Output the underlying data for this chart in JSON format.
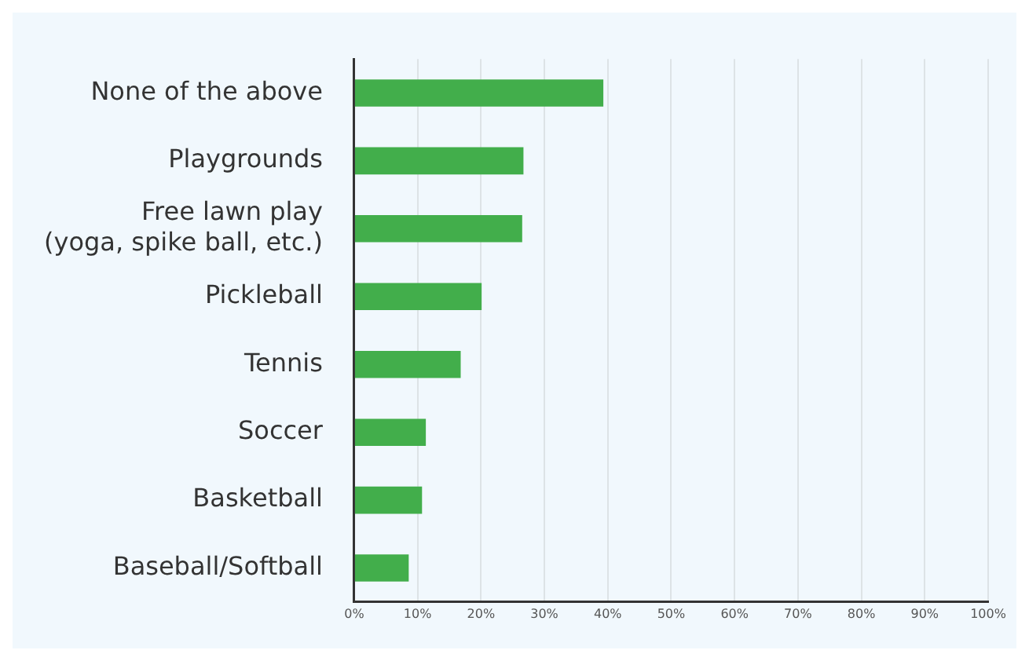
{
  "chart_data": {
    "type": "bar",
    "orientation": "horizontal",
    "categories": [
      "None of the above",
      "Playgrounds",
      "Free lawn play\n(yoga, spike ball, etc.)",
      "Pickleball",
      "Tennis",
      "Soccer",
      "Basketball",
      "Baseball/Softball"
    ],
    "values": [
      39.3,
      26.7,
      26.5,
      20.1,
      16.8,
      11.3,
      10.7,
      8.6
    ],
    "color": "#42ae4b",
    "xlim": [
      0,
      100
    ],
    "xticks": [
      {
        "value": 0,
        "label": "0%"
      },
      {
        "value": 10,
        "label": "10%"
      },
      {
        "value": 20,
        "label": "20%"
      },
      {
        "value": 30,
        "label": "30%"
      },
      {
        "value": 40,
        "label": "40%"
      },
      {
        "value": 50,
        "label": "50%"
      },
      {
        "value": 60,
        "label": "60%"
      },
      {
        "value": 70,
        "label": "70%"
      },
      {
        "value": 80,
        "label": "80%"
      },
      {
        "value": 90,
        "label": "90%"
      },
      {
        "value": 100,
        "label": "100%"
      }
    ],
    "grid": "x",
    "legend": false
  }
}
